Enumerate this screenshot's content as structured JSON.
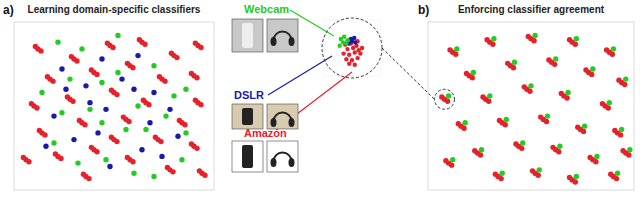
{
  "chart_data": [
    {
      "type": "scatter",
      "title": "Learning domain-specific classifiers",
      "annotations": [
        "a)"
      ],
      "xlim": [
        0,
        100
      ],
      "ylim": [
        0,
        100
      ],
      "tick_labels": false,
      "marker": "circle",
      "series": [
        {
          "name": "Amazon",
          "color": "#e8202a",
          "x": [
            30,
            31.5,
            28.7,
            48,
            49.5,
            46.7,
            64,
            65.5,
            62.7,
            80,
            81.5,
            78.7,
            90,
            91.5,
            88.7,
            18,
            19.5,
            16.7,
            40,
            41.5,
            38.7,
            58,
            59.5,
            56.7,
            74,
            75.5,
            72.7,
            92,
            93.5,
            90.7,
            10,
            11.5,
            8.7,
            28,
            29.5,
            26.7,
            50,
            51.5,
            48.7,
            66,
            67.5,
            64.7,
            84,
            85.5,
            82.7,
            14,
            15.5,
            12.7,
            34,
            35.5,
            32.7,
            56,
            57.5,
            54.7,
            72,
            73.5,
            70.7,
            90,
            91.5,
            88.7,
            22,
            23.5,
            20.7,
            40,
            41.5,
            38.7,
            58,
            59.5,
            56.7,
            78,
            79.5,
            76.7,
            36,
            37.5,
            34.7,
            12,
            13.5,
            10.7,
            92,
            93.5,
            90.7,
            6,
            7.5,
            4.7,
            94,
            95.5,
            92.7,
            50,
            51.5,
            48.7
          ],
          "values": [
            78,
            76.8,
            79.4,
            86,
            84.8,
            87.4,
            88,
            86.8,
            89.4,
            80,
            78.8,
            81.4,
            68,
            66.8,
            69.4,
            66,
            64.8,
            67.4,
            70,
            68.8,
            71.4,
            74,
            72.8,
            75.4,
            66,
            64.8,
            67.4,
            52,
            50.8,
            53.4,
            50,
            48.8,
            51.4,
            54,
            52.8,
            55.4,
            58,
            56.8,
            59.4,
            52,
            50.8,
            53.4,
            40,
            38.8,
            41.4,
            34,
            32.8,
            35.4,
            40,
            38.8,
            41.4,
            42,
            40.8,
            43.4,
            30,
            28.8,
            31.4,
            26,
            24.8,
            27.4,
            20,
            18.8,
            21.4,
            24,
            22.8,
            25.4,
            18,
            16.8,
            19.4,
            12,
            10.8,
            13.4,
            8,
            6.8,
            9.4,
            84,
            82.8,
            85.4,
            86,
            84.8,
            87.4,
            18,
            16.8,
            19.4,
            10,
            8.8,
            11.4,
            30,
            28.8,
            31.4
          ]
        },
        {
          "name": "DSLR",
          "color": "#1a1aa8",
          "x": [
            24,
            36,
            44,
            54,
            62,
            70,
            20,
            46,
            60,
            78,
            30,
            42,
            68,
            82,
            16,
            48,
            64,
            26,
            38,
            74
          ],
          "values": [
            72,
            62,
            78,
            66,
            80,
            58,
            44,
            48,
            60,
            48,
            30,
            34,
            40,
            32,
            26,
            14,
            24,
            60,
            52,
            20
          ]
        },
        {
          "name": "Webcam",
          "color": "#22cc22",
          "x": [
            22,
            34,
            52,
            70,
            86,
            14,
            44,
            62,
            80,
            24,
            38,
            56,
            76,
            20,
            32,
            46,
            66,
            86,
            28,
            52,
            70,
            44,
            60,
            84
          ],
          "values": [
            88,
            84,
            92,
            74,
            60,
            58,
            64,
            50,
            56,
            46,
            48,
            36,
            44,
            28,
            16,
            18,
            36,
            34,
            66,
            70,
            8,
            40,
            10,
            18
          ]
        }
      ]
    },
    {
      "type": "scatter",
      "title": "Enforcing classifier agreement",
      "annotations": [
        "b)"
      ],
      "xlim": [
        0,
        100
      ],
      "ylim": [
        0,
        100
      ],
      "tick_labels": false,
      "marker": "circle",
      "series": [
        {
          "color": "#e8202a",
          "x": [
            12,
            13.5,
            10.7,
            30,
            31.5,
            28.7,
            50,
            51.5,
            48.7,
            70,
            71.5,
            68.7,
            88,
            89.5,
            86.7,
            20,
            21.5,
            18.7,
            40,
            41.5,
            38.7,
            60,
            61.5,
            58.7,
            78,
            79.5,
            76.7,
            94,
            95.5,
            92.7,
            8,
            9.5,
            6.7,
            28,
            29.5,
            26.7,
            48,
            49.5,
            46.7,
            66,
            67.5,
            64.7,
            86,
            87.5,
            84.7,
            16,
            17.5,
            14.7,
            36,
            37.5,
            34.7,
            56,
            57.5,
            54.7,
            74,
            75.5,
            72.7,
            92,
            93.5,
            90.7,
            24,
            25.5,
            22.7,
            44,
            45.5,
            42.7,
            62,
            63.5,
            60.7,
            80,
            81.5,
            78.7,
            10,
            11.5,
            8.7,
            34,
            35.5,
            32.7,
            52,
            53.5,
            50.7,
            70,
            71.5,
            68.7,
            90,
            91.5,
            88.7,
            96,
            97.5,
            94.7
          ],
          "values": [
            82,
            80.8,
            83.4,
            88,
            86.8,
            89.4,
            90,
            88.8,
            91.4,
            88,
            86.8,
            89.4,
            82,
            80.8,
            83.4,
            68,
            66.8,
            69.4,
            74,
            72.8,
            75.4,
            76,
            74.8,
            77.4,
            70,
            68.8,
            71.4,
            64,
            62.8,
            65.4,
            54,
            52.8,
            55.4,
            54,
            52.8,
            55.4,
            60,
            58.8,
            61.4,
            56,
            54.8,
            57.4,
            50,
            48.8,
            51.4,
            38,
            36.8,
            39.4,
            40,
            38.8,
            41.4,
            42,
            40.8,
            43.4,
            36,
            34.8,
            37.4,
            34,
            32.8,
            35.4,
            22,
            20.8,
            23.4,
            26,
            24.8,
            27.4,
            24,
            22.8,
            25.4,
            18,
            16.8,
            19.4,
            16,
            14.8,
            17.4,
            8,
            6.8,
            9.4,
            10,
            8.8,
            11.4,
            6,
            4.8,
            7.4,
            8,
            6.8,
            9.4,
            22,
            20.8,
            23.4
          ]
        },
        {
          "color": "#22cc22",
          "x": [
            14,
            32,
            52,
            72,
            90,
            22,
            42,
            62,
            80,
            96,
            10,
            30,
            50,
            68,
            88,
            18,
            38,
            58,
            76,
            94,
            26,
            46,
            64,
            82,
            12,
            36,
            54,
            72,
            92,
            98
          ],
          "values": [
            84,
            90,
            92,
            90,
            84,
            70,
            76,
            78,
            72,
            66,
            56,
            56,
            62,
            58,
            52,
            40,
            42,
            44,
            38,
            36,
            24,
            28,
            26,
            20,
            18,
            10,
            12,
            8,
            10,
            24
          ]
        }
      ]
    },
    {
      "type": "scatter",
      "xlim": [
        0,
        100
      ],
      "ylim": [
        0,
        100
      ],
      "tick_labels": false,
      "marker": "circle",
      "series": [
        {
          "color": "#e8202a",
          "x": [
            40,
            50,
            60,
            35,
            45,
            55,
            65,
            42,
            52,
            62,
            38,
            48,
            58,
            68,
            45,
            55,
            50,
            60
          ],
          "values": [
            30,
            28,
            32,
            40,
            38,
            42,
            40,
            48,
            50,
            46,
            56,
            58,
            54,
            50,
            22,
            20,
            64,
            62
          ]
        },
        {
          "color": "#1a1aa8",
          "x": [
            44,
            50,
            56,
            48,
            54
          ],
          "values": [
            58,
            62,
            60,
            66,
            68
          ]
        },
        {
          "color": "#22cc22",
          "x": [
            30,
            36,
            42,
            34,
            40,
            28
          ],
          "values": [
            66,
            70,
            64,
            60,
            58,
            54
          ]
        }
      ]
    }
  ]
}
